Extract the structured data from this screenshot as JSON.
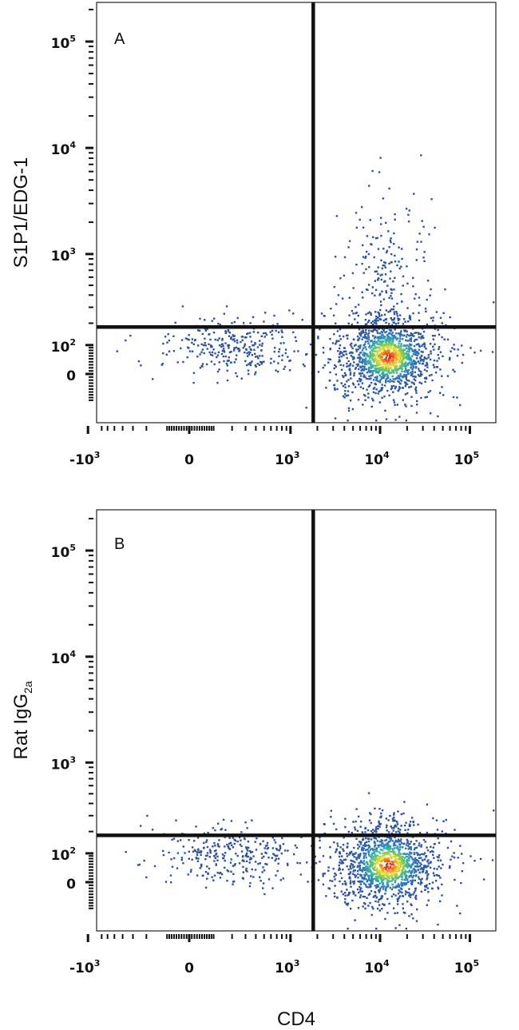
{
  "chart_data": [
    {
      "type": "scatter",
      "panel_label": "A",
      "ylabel": "S1P1/EDG-1",
      "xlabel": "",
      "x_scale": "biexponential",
      "y_scale": "biexponential",
      "x_ticks": [
        "-10^3",
        "0",
        "10^3",
        "10^4",
        "10^5"
      ],
      "y_ticks": [
        "0",
        "10^2",
        "10^3",
        "10^4",
        "10^5"
      ],
      "quadrant_gate": {
        "x": 1800,
        "y": 180
      },
      "populations": [
        {
          "name": "",
          "x_center": 12000,
          "y_center": 60,
          "events": 1300
        },
        {
          "name": "",
          "x_center": 12000,
          "y_center": 600,
          "events": 220
        },
        {
          "name": "",
          "x_center": 200,
          "y_center": 100,
          "events": 300
        }
      ]
    },
    {
      "type": "scatter",
      "panel_label": "B",
      "ylabel": "Rat IgG",
      "ylabel_subscript": "2a",
      "xlabel": "CD4",
      "x_scale": "biexponential",
      "y_scale": "biexponential",
      "x_ticks": [
        "-10^3",
        "0",
        "10^3",
        "10^4",
        "10^5"
      ],
      "y_ticks": [
        "0",
        "10^2",
        "10^3",
        "10^4",
        "10^5"
      ],
      "quadrant_gate": {
        "x": 1800,
        "y": 180
      },
      "populations": [
        {
          "name": "",
          "x_center": 12000,
          "y_center": 60,
          "events": 1300
        },
        {
          "name": "",
          "x_center": 12000,
          "y_center": 250,
          "events": 40
        },
        {
          "name": "",
          "x_center": 200,
          "y_center": 100,
          "events": 300
        }
      ]
    }
  ],
  "colors": {
    "low_density": "#2d4fa3",
    "mid_density": "#2fb3a8",
    "high_density": "#f0e22a",
    "peak_density": "#e2231a",
    "gate_line": "#111111"
  }
}
